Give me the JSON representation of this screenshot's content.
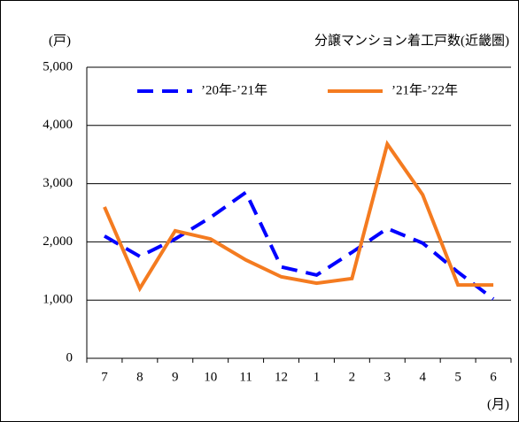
{
  "chart_data": {
    "type": "line",
    "title": "分譲マンション着工戸数(近畿圏)",
    "y_unit": "(戸)",
    "x_unit": "(月)",
    "categories": [
      "7",
      "8",
      "9",
      "10",
      "11",
      "12",
      "1",
      "2",
      "3",
      "4",
      "5",
      "6"
    ],
    "series": [
      {
        "name": "’20年-’21年",
        "color": "#0000ff",
        "dashed": true,
        "values": [
          2100,
          1750,
          2050,
          2420,
          2850,
          1570,
          1430,
          1820,
          2230,
          1980,
          1480,
          1020
        ]
      },
      {
        "name": "’21年-’22年",
        "color": "#f47b20",
        "dashed": false,
        "values": [
          2600,
          1200,
          2190,
          2050,
          1690,
          1400,
          1290,
          1370,
          3680,
          2810,
          1260,
          1260
        ]
      }
    ],
    "ylim": [
      0,
      5000
    ],
    "yticks": [
      0,
      {
        "value": 1000,
        "label": "1,000"
      },
      {
        "value": 2000,
        "label": "2,000"
      },
      {
        "value": 3000,
        "label": "3,000"
      },
      {
        "value": 4000,
        "label": "4,000"
      },
      {
        "value": 5000,
        "label": "5,000"
      }
    ],
    "grid": true
  }
}
